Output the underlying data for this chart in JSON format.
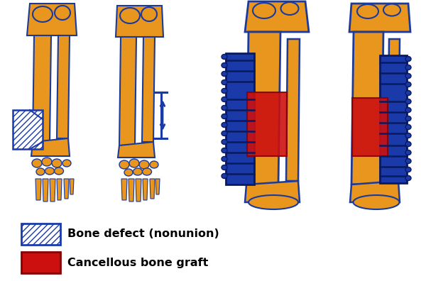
{
  "bg_color": "#ffffff",
  "bone_color": "#E8961E",
  "bone_edge": "#1a3a9c",
  "blue_plate": "#1a3aaa",
  "red_graft": "#cc1010",
  "legend_items": [
    {
      "label": "Bone defect (nonunion)",
      "hatch": "////",
      "fc": "#ffffff",
      "ec": "#1a3aaa"
    },
    {
      "label": "Cancellous bone graft",
      "hatch": "",
      "fc": "#cc1010",
      "ec": "#880000"
    }
  ],
  "legend_fontsize": 11.5
}
